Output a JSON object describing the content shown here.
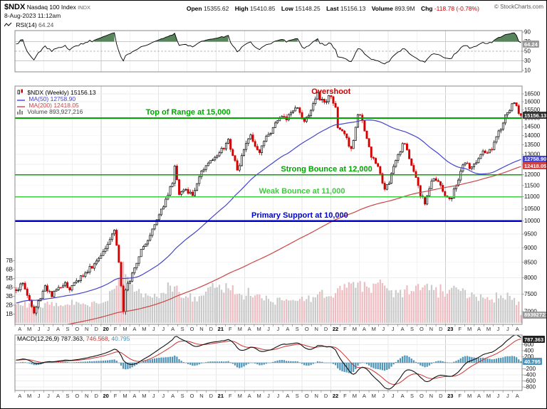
{
  "header": {
    "symbol": "$NDX",
    "name": "Nasdaq 100 Index",
    "exchange": "INDX",
    "datetime": "8-Aug-2023 11:12am",
    "copyright": "© StockCharts.com",
    "quote": {
      "open_label": "Open",
      "open": "15355.62",
      "high_label": "High",
      "high": "15410.85",
      "low_label": "Low",
      "low": "15148.25",
      "last_label": "Last",
      "last": "15156.13",
      "volume_label": "Volume",
      "volume": "893.9M",
      "chg_label": "Chg",
      "chg": "-118.78 (-0.78%)"
    }
  },
  "rsi_panel": {
    "legend_label": "RSI(14)",
    "legend_value": "64.24",
    "ticks": [
      90,
      70,
      50,
      30,
      10
    ],
    "tag": "64.24"
  },
  "main_panel": {
    "legend_symbol": "$NDX (Weekly) 15156.13",
    "legend_ma50": "MA(50) 12758.90",
    "legend_ma200": "MA(200) 12418.05",
    "legend_volume": "Volume 893,927,216",
    "price_tag": "15156.13",
    "ma50_tag": "12758.90",
    "ma200_tag": "12418.05",
    "volume_tag": "893927216",
    "volume_ticks": [
      "7B",
      "6B",
      "5B",
      "4B",
      "3B",
      "2B",
      "1B"
    ]
  },
  "macd_panel": {
    "legend_name": "MACD(12,26,9)",
    "v1": "787.363",
    "v2": "746.568",
    "v3": "40.795",
    "sep": ", ",
    "ticks": [
      800,
      600,
      400,
      200,
      0,
      -200,
      -400,
      -600,
      -800
    ],
    "macd_tag": "787.363",
    "hist_tag": "40.795"
  },
  "colors": {
    "up": "#000000",
    "down": "#d40000",
    "up_fill": "#ffffff",
    "vol_up": "#c4c4c4",
    "vol_down": "#edb6ba",
    "ma50": "#4444cc",
    "ma200": "#cc4444",
    "hist": "#4d94b8",
    "macd_line": "#111111",
    "signal_line": "#cc3333",
    "rsi_line": "#000000",
    "rsi_fill": "#39703f",
    "annotation_green": "#00a500",
    "annotation_light_green": "#3ecc3e",
    "annotation_blue": "#0000cc",
    "overshoot_red": "#cc0000"
  },
  "chart_data": {
    "type": "candlestick",
    "title": "$NDX Nasdaq 100 Index (Weekly) with RSI(14), MA(50), MA(200), Volume and MACD(12,26,9)",
    "timeframe": "weekly",
    "x_range": "Apr-2019 to Aug-2023",
    "yscale": "log",
    "ylim": [
      6657,
      17016
    ],
    "grid": "on",
    "legend_position": "top-left",
    "weeks": 227,
    "seed": 1337,
    "price_ticks": {
      "min": 7000,
      "max": 16500,
      "step": 500
    },
    "month_labels": [
      "A",
      "M",
      "J",
      "J",
      "A",
      "S",
      "O",
      "N",
      "D",
      "20",
      "F",
      "M",
      "A",
      "M",
      "J",
      "J",
      "A",
      "S",
      "O",
      "N",
      "D",
      "21",
      "F",
      "M",
      "A",
      "M",
      "J",
      "J",
      "A",
      "S",
      "O",
      "N",
      "D",
      "22",
      "F",
      "M",
      "A",
      "M",
      "J",
      "J",
      "A",
      "S",
      "O",
      "N",
      "D",
      "23",
      "F",
      "M",
      "A",
      "M",
      "J",
      "J",
      "A"
    ],
    "price_anchors": [
      [
        0,
        7600
      ],
      [
        3,
        7830
      ],
      [
        8,
        6960
      ],
      [
        13,
        7750
      ],
      [
        16,
        7420
      ],
      [
        19,
        7700
      ],
      [
        22,
        7850
      ],
      [
        24,
        7620
      ],
      [
        27,
        7900
      ],
      [
        31,
        8150
      ],
      [
        35,
        8450
      ],
      [
        39,
        8870
      ],
      [
        44,
        9650
      ],
      [
        46,
        8500
      ],
      [
        48,
        7000
      ],
      [
        49,
        7620
      ],
      [
        52,
        8150
      ],
      [
        56,
        8950
      ],
      [
        60,
        9450
      ],
      [
        64,
        10250
      ],
      [
        67,
        10900
      ],
      [
        70,
        11600
      ],
      [
        71,
        12420
      ],
      [
        73,
        11100
      ],
      [
        75,
        11300
      ],
      [
        77,
        11150
      ],
      [
        79,
        11050
      ],
      [
        82,
        11900
      ],
      [
        84,
        12250
      ],
      [
        87,
        12690
      ],
      [
        89,
        12850
      ],
      [
        91,
        13090
      ],
      [
        93,
        13280
      ],
      [
        95,
        13800
      ],
      [
        97,
        12940
      ],
      [
        99,
        12220
      ],
      [
        101,
        12940
      ],
      [
        103,
        13580
      ],
      [
        105,
        14040
      ],
      [
        107,
        13420
      ],
      [
        109,
        13090
      ],
      [
        111,
        13690
      ],
      [
        113,
        14070
      ],
      [
        115,
        14450
      ],
      [
        117,
        14840
      ],
      [
        119,
        15110
      ],
      [
        121,
        14890
      ],
      [
        123,
        15320
      ],
      [
        125,
        15610
      ],
      [
        127,
        15330
      ],
      [
        129,
        14800
      ],
      [
        131,
        15150
      ],
      [
        133,
        15880
      ],
      [
        135,
        16580
      ],
      [
        136,
        16100
      ],
      [
        138,
        15960
      ],
      [
        140,
        16390
      ],
      [
        141,
        16320
      ],
      [
        143,
        15650
      ],
      [
        144,
        14440
      ],
      [
        146,
        14260
      ],
      [
        148,
        13880
      ],
      [
        150,
        13300
      ],
      [
        152,
        14470
      ],
      [
        153,
        15210
      ],
      [
        155,
        14880
      ],
      [
        157,
        13840
      ],
      [
        159,
        12850
      ],
      [
        161,
        12540
      ],
      [
        163,
        12050
      ],
      [
        165,
        11330
      ],
      [
        167,
        11600
      ],
      [
        169,
        12400
      ],
      [
        171,
        13000
      ],
      [
        173,
        13570
      ],
      [
        175,
        13240
      ],
      [
        177,
        12450
      ],
      [
        179,
        11870
      ],
      [
        181,
        11040
      ],
      [
        183,
        10690
      ],
      [
        185,
        11360
      ],
      [
        187,
        11820
      ],
      [
        189,
        11680
      ],
      [
        191,
        11240
      ],
      [
        193,
        10980
      ],
      [
        195,
        10940
      ],
      [
        197,
        11500
      ],
      [
        199,
        12170
      ],
      [
        201,
        12570
      ],
      [
        203,
        12290
      ],
      [
        205,
        12520
      ],
      [
        207,
        12790
      ],
      [
        209,
        13180
      ],
      [
        211,
        13080
      ],
      [
        213,
        13240
      ],
      [
        215,
        13940
      ],
      [
        217,
        14350
      ],
      [
        219,
        15200
      ],
      [
        221,
        15460
      ],
      [
        223,
        15930
      ],
      [
        224,
        15750
      ],
      [
        226,
        15156.13
      ]
    ],
    "volume_anchors_billions": [
      [
        0,
        2.1
      ],
      [
        10,
        1.9
      ],
      [
        20,
        2.0
      ],
      [
        30,
        2.2
      ],
      [
        40,
        2.4
      ],
      [
        45,
        4.2
      ],
      [
        48,
        6.9
      ],
      [
        50,
        5.2
      ],
      [
        54,
        3.6
      ],
      [
        60,
        3.0
      ],
      [
        66,
        3.4
      ],
      [
        71,
        4.1
      ],
      [
        76,
        3.0
      ],
      [
        84,
        3.1
      ],
      [
        91,
        4.3
      ],
      [
        95,
        3.9
      ],
      [
        100,
        3.3
      ],
      [
        107,
        3.1
      ],
      [
        113,
        2.7
      ],
      [
        120,
        2.5
      ],
      [
        127,
        2.7
      ],
      [
        135,
        3.2
      ],
      [
        141,
        3.0
      ],
      [
        144,
        3.9
      ],
      [
        151,
        4.6
      ],
      [
        157,
        4.1
      ],
      [
        161,
        4.4
      ],
      [
        165,
        4.2
      ],
      [
        171,
        3.4
      ],
      [
        177,
        3.6
      ],
      [
        182,
        4.0
      ],
      [
        187,
        3.7
      ],
      [
        193,
        3.3
      ],
      [
        199,
        3.6
      ],
      [
        205,
        3.2
      ],
      [
        211,
        2.9
      ],
      [
        217,
        3.1
      ],
      [
        223,
        2.8
      ],
      [
        225,
        2.4
      ],
      [
        226,
        0.89
      ]
    ],
    "hlines": [
      {
        "value": 15000,
        "label": "Top of Range at 15,000",
        "color": "#00a500",
        "width": 2,
        "label_x_week": 77
      },
      {
        "value": 12000,
        "label": "Strong Bounce at 12,000",
        "color": "#00a500",
        "width": 1.6,
        "label_x_week": 139
      },
      {
        "value": 11000,
        "label": "Weak Bounce at 11,000",
        "color": "#3ecc3e",
        "width": 1.3,
        "label_x_week": 128
      },
      {
        "value": 10000,
        "label": "Primary Support at 10,000",
        "color": "#0000cc",
        "width": 2.4,
        "label_x_week": 127
      }
    ],
    "text_annotations": [
      {
        "text": "Overshoot",
        "color": "#cc0000",
        "x_week": 141,
        "price": 16900
      }
    ],
    "indicators": {
      "last_close": 15156.13,
      "rsi_14": 64.24,
      "ma50": 12758.9,
      "ma200": 12418.05,
      "macd": [
        787.363,
        746.568,
        40.795
      ],
      "volume": "893.9M"
    }
  }
}
